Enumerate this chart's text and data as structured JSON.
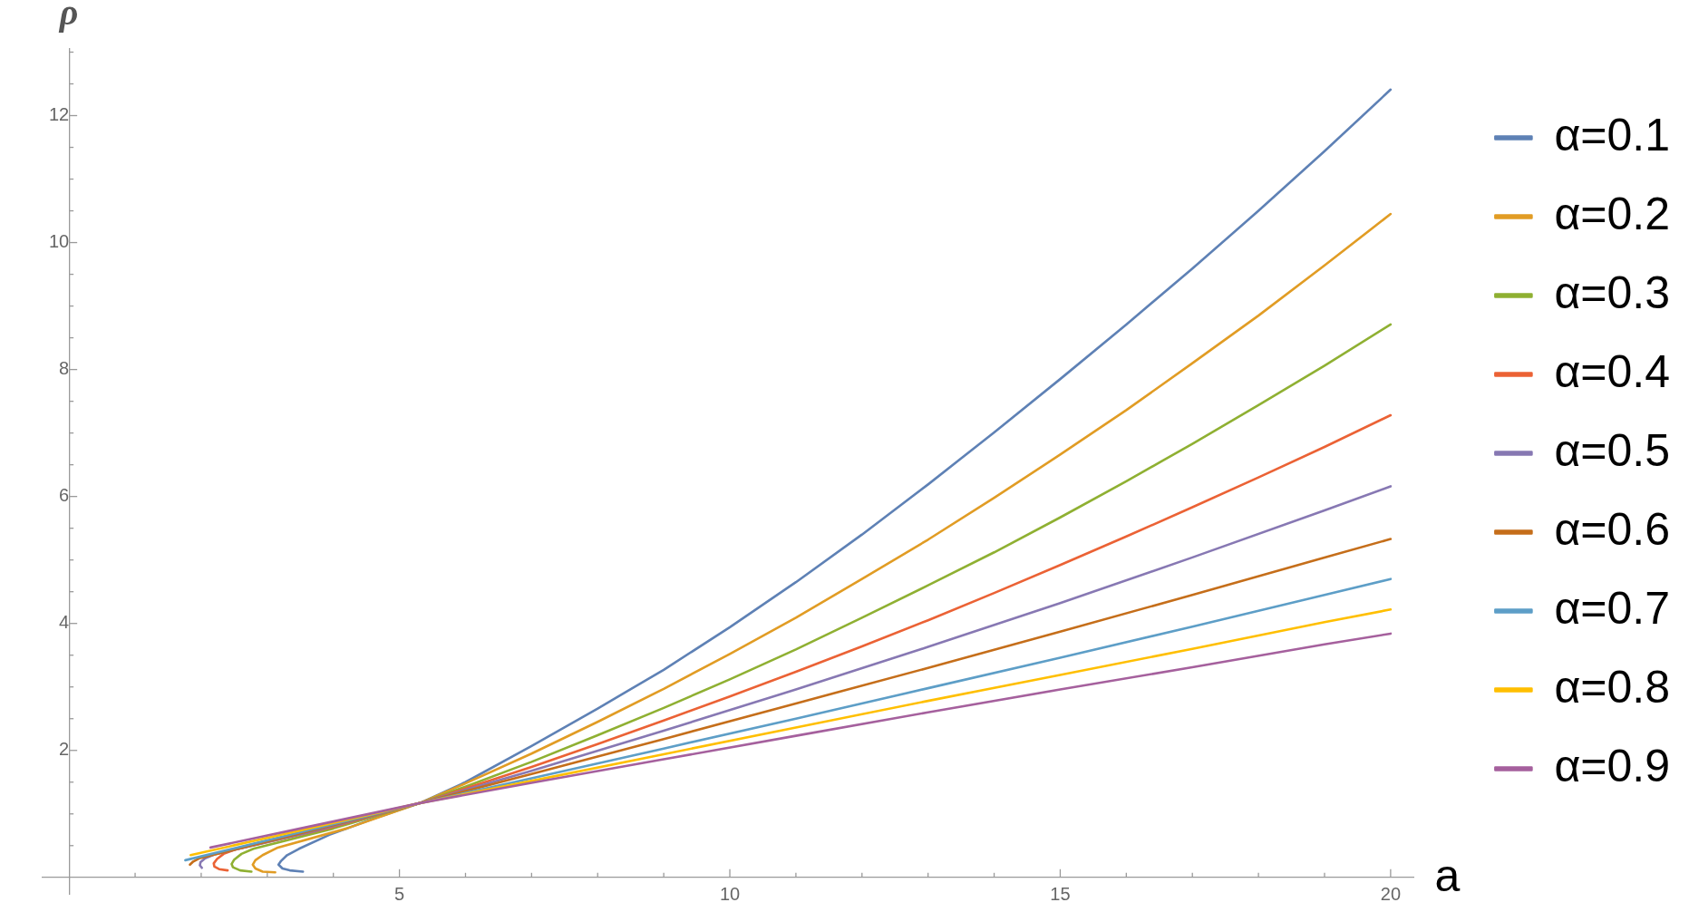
{
  "chart_data": {
    "type": "line",
    "xlabel": "a",
    "ylabel": "ρ",
    "legend": "right",
    "marker": "none",
    "line_style": "solid",
    "xlim": [
      -0.4,
      20.35
    ],
    "ylim": [
      -0.26,
      13.05
    ],
    "xticks": [
      {
        "value": 1,
        "label": null
      },
      {
        "value": 2,
        "label": null
      },
      {
        "value": 3,
        "label": null
      },
      {
        "value": 4,
        "label": null
      },
      5,
      {
        "value": 6,
        "label": null
      },
      {
        "value": 7,
        "label": null
      },
      {
        "value": 8,
        "label": null
      },
      {
        "value": 9,
        "label": null
      },
      10,
      {
        "value": 11,
        "label": null
      },
      {
        "value": 12,
        "label": null
      },
      {
        "value": 13,
        "label": null
      },
      {
        "value": 14,
        "label": null
      },
      15,
      {
        "value": 16,
        "label": null
      },
      {
        "value": 17,
        "label": null
      },
      {
        "value": 18,
        "label": null
      },
      {
        "value": 19,
        "label": null
      },
      20
    ],
    "yticks": [
      {
        "value": 0.5,
        "label": null
      },
      {
        "value": 1,
        "label": null
      },
      {
        "value": 1.5,
        "label": null
      },
      2,
      {
        "value": 2.5,
        "label": null
      },
      {
        "value": 3,
        "label": null
      },
      {
        "value": 3.5,
        "label": null
      },
      4,
      {
        "value": 4.5,
        "label": null
      },
      {
        "value": 5,
        "label": null
      },
      {
        "value": 5.5,
        "label": null
      },
      6,
      {
        "value": 6.5,
        "label": null
      },
      {
        "value": 7,
        "label": null
      },
      {
        "value": 7.5,
        "label": null
      },
      8,
      {
        "value": 8.5,
        "label": null
      },
      {
        "value": 9,
        "label": null
      },
      {
        "value": 9.5,
        "label": null
      },
      10,
      {
        "value": 10.5,
        "label": null
      },
      {
        "value": 11,
        "label": null
      },
      {
        "value": 11.5,
        "label": null
      },
      12,
      {
        "value": 12.5,
        "label": null
      },
      {
        "value": 13,
        "label": null
      }
    ],
    "series": [
      {
        "name": "α=0.1",
        "color": "#5e81b5",
        "x": [
          3.54,
          3.34,
          3.23,
          3.17,
          3.21,
          3.3,
          3.48,
          3.94,
          4.62,
          5.31,
          6,
          7,
          8,
          9,
          10,
          11,
          12,
          13,
          14,
          15,
          16,
          17,
          18,
          19,
          20
        ],
        "values": [
          0.09,
          0.11,
          0.14,
          0.2,
          0.26,
          0.35,
          0.45,
          0.67,
          0.93,
          1.17,
          1.5,
          2.07,
          2.66,
          3.27,
          3.94,
          4.65,
          5.4,
          6.19,
          7.01,
          7.85,
          8.71,
          9.59,
          10.5,
          11.44,
          12.41
        ]
      },
      {
        "name": "α=0.2",
        "color": "#e19c24",
        "x": [
          3.12,
          2.93,
          2.82,
          2.78,
          2.82,
          2.93,
          3.16,
          4.2,
          5.31,
          6,
          7,
          8,
          9,
          10,
          11,
          12,
          13,
          14,
          15,
          16,
          17,
          18,
          19,
          20
        ],
        "values": [
          0.08,
          0.09,
          0.14,
          0.2,
          0.27,
          0.35,
          0.47,
          0.77,
          1.17,
          1.48,
          1.95,
          2.45,
          2.97,
          3.52,
          4.09,
          4.7,
          5.32,
          5.98,
          6.66,
          7.36,
          8.1,
          8.85,
          9.64,
          10.45
        ]
      },
      {
        "name": "α=0.3",
        "color": "#8fb032",
        "x": [
          2.76,
          2.59,
          2.48,
          2.46,
          2.5,
          2.61,
          2.79,
          4,
          5.31,
          6,
          7,
          8,
          9,
          10,
          11,
          12,
          13,
          14,
          15,
          16,
          17,
          18,
          19,
          20
        ],
        "values": [
          0.09,
          0.11,
          0.16,
          0.21,
          0.28,
          0.37,
          0.45,
          0.77,
          1.17,
          1.43,
          1.82,
          2.24,
          2.67,
          3.12,
          3.59,
          4.09,
          4.6,
          5.12,
          5.67,
          6.24,
          6.83,
          7.44,
          8.06,
          8.71
        ]
      },
      {
        "name": "α=0.4",
        "color": "#eb6235",
        "x": [
          2.4,
          2.27,
          2.2,
          2.19,
          2.24,
          2.34,
          2.52,
          3.9,
          5.31,
          6,
          7,
          8,
          9,
          10,
          11,
          12,
          13,
          14,
          15,
          16,
          17,
          18,
          19,
          20
        ],
        "values": [
          0.11,
          0.13,
          0.17,
          0.22,
          0.29,
          0.37,
          0.44,
          0.77,
          1.17,
          1.4,
          1.74,
          2.1,
          2.47,
          2.85,
          3.24,
          3.64,
          4.05,
          4.48,
          4.92,
          5.37,
          5.83,
          6.3,
          6.78,
          7.28
        ]
      },
      {
        "name": "α=0.5",
        "color": "#8778b3",
        "x": [
          2.01,
          1.98,
          1.99,
          2.06,
          2.2,
          3.75,
          5.31,
          7,
          9,
          11,
          13,
          15,
          17,
          19,
          20
        ],
        "values": [
          0.15,
          0.19,
          0.24,
          0.3,
          0.36,
          0.74,
          1.17,
          1.68,
          2.31,
          2.96,
          3.63,
          4.32,
          5.04,
          5.78,
          6.16
        ]
      },
      {
        "name": "α=0.6",
        "color": "#c56e1a",
        "x": [
          1.83,
          1.88,
          1.97,
          3.6,
          5.31,
          7,
          9,
          11,
          13,
          15,
          17,
          19,
          20
        ],
        "values": [
          0.2,
          0.25,
          0.3,
          0.72,
          1.17,
          1.63,
          2.18,
          2.74,
          3.3,
          3.87,
          4.45,
          5.04,
          5.33
        ]
      },
      {
        "name": "α=0.7",
        "color": "#5d9ec7",
        "x": [
          1.76,
          3.5,
          5.31,
          7,
          9,
          11,
          13,
          15,
          17,
          19,
          20
        ],
        "values": [
          0.27,
          0.71,
          1.17,
          1.56,
          2.03,
          2.5,
          2.98,
          3.46,
          3.95,
          4.45,
          4.7
        ]
      },
      {
        "name": "α=0.8",
        "color": "#ffbf00",
        "x": [
          1.84,
          3.5,
          5.31,
          7,
          9,
          11,
          13,
          15,
          17,
          19,
          20
        ],
        "values": [
          0.35,
          0.74,
          1.17,
          1.52,
          1.94,
          2.36,
          2.78,
          3.19,
          3.6,
          4.02,
          4.22
        ]
      },
      {
        "name": "α=0.9",
        "color": "#a5609d",
        "x": [
          2.14,
          3.5,
          5.31,
          7,
          9,
          11,
          13,
          15,
          17,
          19,
          20
        ],
        "values": [
          0.47,
          0.77,
          1.17,
          1.49,
          1.86,
          2.23,
          2.6,
          2.96,
          3.31,
          3.67,
          3.84
        ]
      }
    ]
  }
}
